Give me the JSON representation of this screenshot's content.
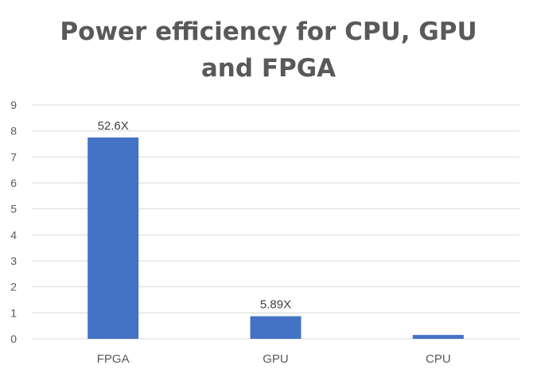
{
  "chart_data": {
    "type": "bar",
    "title_lines": [
      "Power efficiency for CPU, GPU",
      "and FPGA"
    ],
    "categories": [
      "FPGA",
      "GPU",
      "CPU"
    ],
    "values": [
      7.75,
      0.87,
      0.15
    ],
    "data_labels": [
      "52.6X",
      "5.89X",
      ""
    ],
    "ylim": [
      0,
      9
    ],
    "yticks": [
      0,
      1,
      2,
      3,
      4,
      5,
      6,
      7,
      8,
      9
    ],
    "xlabel": "",
    "ylabel": "",
    "grid": true,
    "legend": "none",
    "colors": {
      "bar": "#4472C4",
      "grid": "#D9D9D9",
      "axis_text": "#595959",
      "label_text": "#404040",
      "title": "#595959"
    }
  }
}
